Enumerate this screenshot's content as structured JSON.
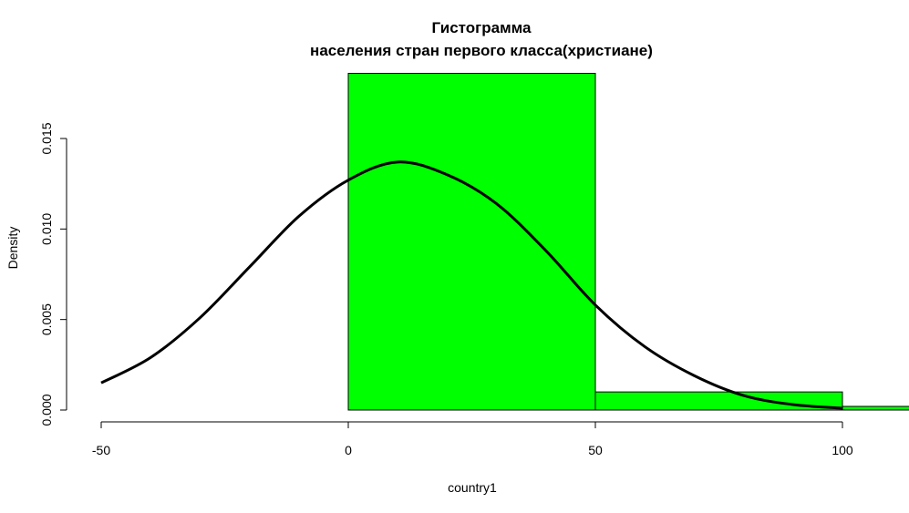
{
  "chart_data": {
    "type": "bar",
    "title_line1": "Гистограмма",
    "title_line2": "населения стран первого класса(христиане)",
    "xlabel": "country1",
    "ylabel": "Density",
    "xlim": [
      -50,
      100
    ],
    "ylim": [
      0,
      0.015
    ],
    "x_ticks": [
      -50,
      0,
      50,
      100
    ],
    "x_tick_labels": [
      "-50",
      "0",
      "50",
      "100"
    ],
    "y_ticks": [
      0,
      0.005,
      0.01,
      0.015
    ],
    "y_tick_labels": [
      "0.000",
      "0.005",
      "0.010",
      "0.015"
    ],
    "bins": [
      {
        "from": 0,
        "to": 50,
        "density": 0.0186
      },
      {
        "from": 50,
        "to": 100,
        "density": 0.001
      },
      {
        "from": 100,
        "to": 150,
        "density": 0.0002
      }
    ],
    "density_curve": {
      "x": [
        -50,
        -40,
        -30,
        -20,
        -10,
        0,
        10,
        20,
        30,
        40,
        50,
        60,
        70,
        80,
        90,
        100
      ],
      "y": [
        0.0015,
        0.0029,
        0.0051,
        0.0079,
        0.0107,
        0.0127,
        0.0137,
        0.013,
        0.0114,
        0.0088,
        0.0058,
        0.0035,
        0.0019,
        0.0008,
        0.0003,
        0.0001
      ]
    },
    "colors": {
      "bar_fill": "#00ff00",
      "bar_stroke": "#000000",
      "curve": "#000000"
    }
  }
}
